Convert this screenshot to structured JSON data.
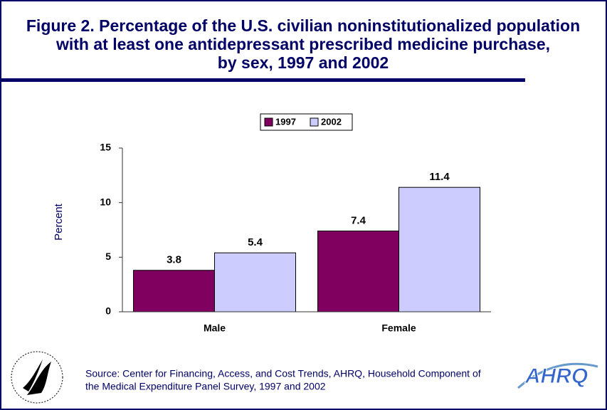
{
  "chart_data": {
    "type": "bar",
    "title": [
      "Figure 2. Percentage of the U.S. civilian noninstitutionalized population",
      "with at least one antidepressant prescribed medicine purchase,",
      "by sex, 1997 and 2002"
    ],
    "y_label": "Percent",
    "categories": [
      "Male",
      "Female"
    ],
    "series": [
      {
        "name": "1997",
        "color": "#800060",
        "values": [
          3.8,
          7.4
        ]
      },
      {
        "name": "2002",
        "color": "#ccccff",
        "values": [
          5.4,
          11.4
        ]
      }
    ],
    "ylim": [
      0,
      15
    ],
    "yticks": [
      0,
      5,
      10,
      15
    ],
    "grid": false,
    "legend": "top",
    "source": [
      "Source: Center for Financing, Access, and Cost Trends, AHRQ, Household Component of",
      "the Medical Expenditure Panel Survey, 1997 and 2002"
    ],
    "logo_text": "AHRQ"
  }
}
